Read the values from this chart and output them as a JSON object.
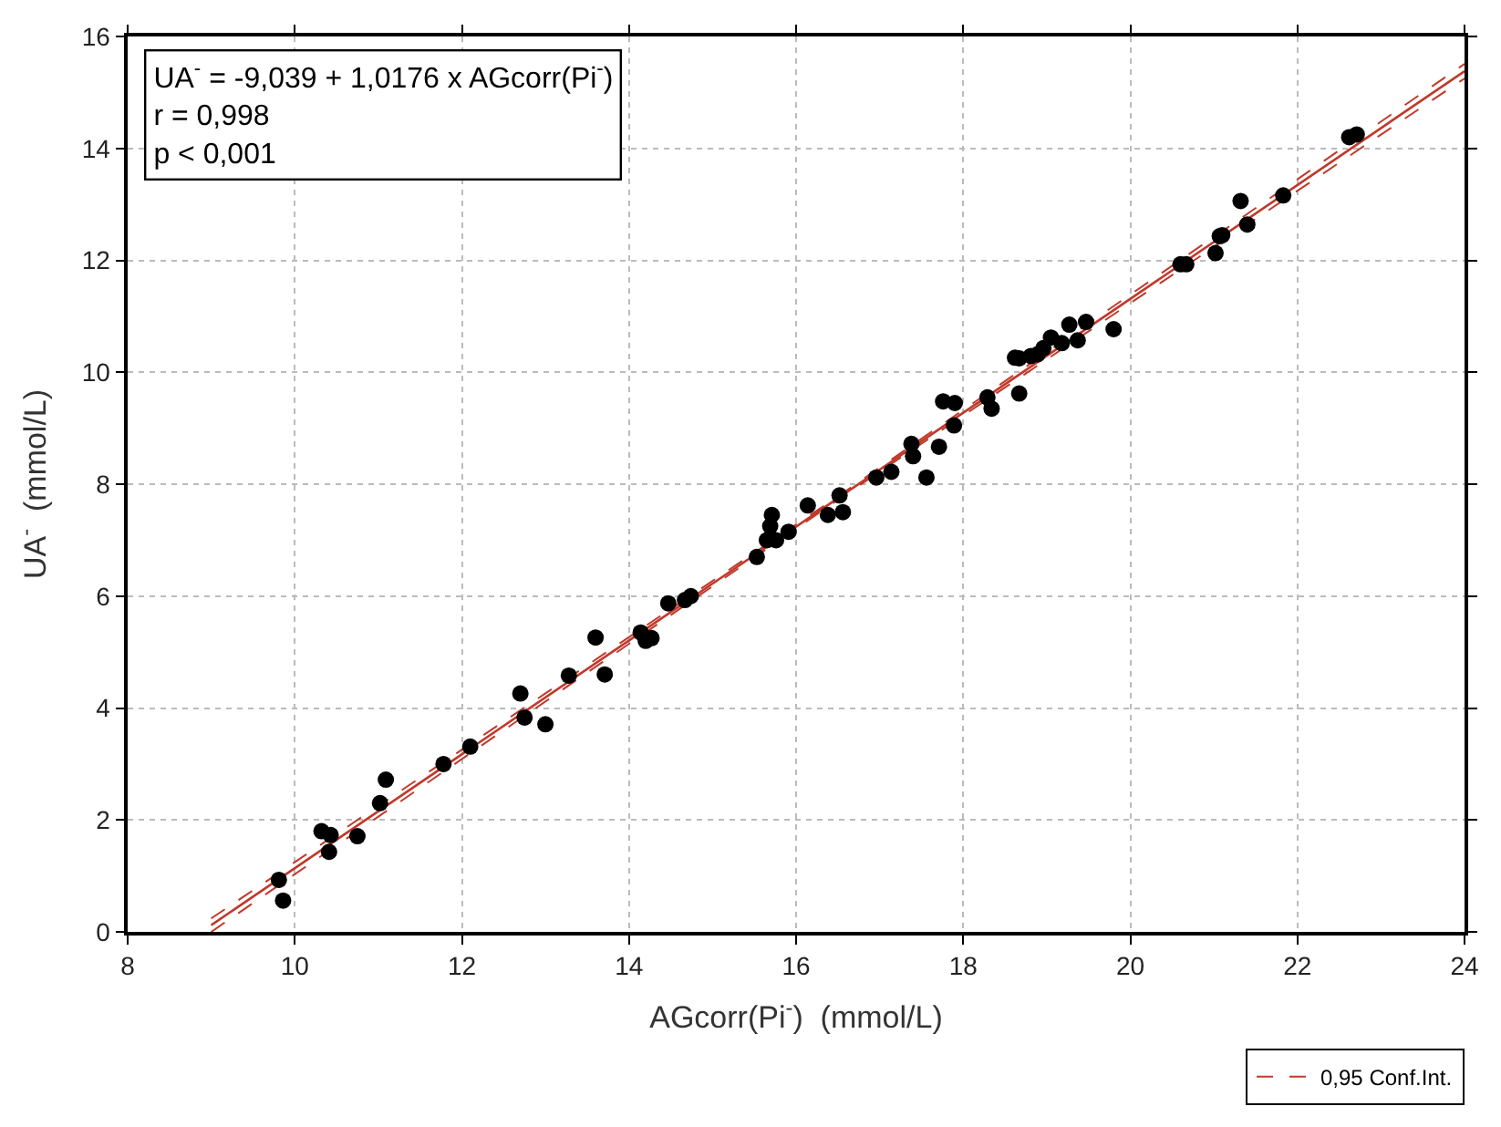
{
  "chart_data": {
    "type": "scatter",
    "xlabel": "AGcorr(Pi$^{-}$)  (mmol/L)",
    "ylabel": "UA$^{-}$  (mmol/L)",
    "annotations": [
      "UA$^{-}$ = -9,039 + 1,0176 x AGcorr(Pi$^{-}$)",
      "r = 0,998",
      "p < 0,001"
    ],
    "xlim": [
      8,
      24
    ],
    "xticks": [
      8,
      10,
      12,
      14,
      16,
      18,
      20,
      22,
      24
    ],
    "ylim": [
      0,
      16
    ],
    "yticks": [
      0,
      2,
      4,
      6,
      8,
      10,
      12,
      14,
      16
    ],
    "grid": true,
    "legend": "bottom right",
    "series": [
      {
        "color": "#000000",
        "marker": "circle",
        "x": [
          9.81,
          9.86,
          10.32,
          10.43,
          10.41,
          10.75,
          11.02,
          11.09,
          11.78,
          12.1,
          12.7,
          12.75,
          13.0,
          13.28,
          13.6,
          13.71,
          14.14,
          14.2,
          14.27,
          14.47,
          14.67,
          14.74,
          15.53,
          15.65,
          15.69,
          15.71,
          15.76,
          15.91,
          16.14,
          16.38,
          16.52,
          16.56,
          16.96,
          17.14,
          17.38,
          17.4,
          17.56,
          17.71,
          17.76,
          17.9,
          17.89,
          18.29,
          18.34,
          18.67,
          18.67,
          18.89,
          18.62,
          18.81,
          18.96,
          19.05,
          19.18,
          19.27,
          19.37,
          19.47,
          19.8,
          20.6,
          20.67,
          21.02,
          21.07,
          21.1,
          21.4,
          21.32,
          21.83,
          22.62,
          22.71
        ],
        "values": [
          0.93,
          0.56,
          1.8,
          1.73,
          1.43,
          1.71,
          2.3,
          2.72,
          3.0,
          3.31,
          4.26,
          3.83,
          3.71,
          4.58,
          5.26,
          4.6,
          5.35,
          5.2,
          5.25,
          5.87,
          5.93,
          6.0,
          6.7,
          7.0,
          7.25,
          7.45,
          7.0,
          7.15,
          7.62,
          7.45,
          7.8,
          7.5,
          8.12,
          8.22,
          8.72,
          8.5,
          8.12,
          8.67,
          9.48,
          9.45,
          9.05,
          9.55,
          9.35,
          9.62,
          10.25,
          10.32,
          10.26,
          10.29,
          10.43,
          10.62,
          10.52,
          10.85,
          10.57,
          10.9,
          10.77,
          11.93,
          11.93,
          12.13,
          12.43,
          12.45,
          12.64,
          13.06,
          13.16,
          14.2,
          14.25
        ]
      },
      {
        "type": "line",
        "color": "#c0392b",
        "line_style": "solid",
        "x": [
          9.0,
          16.5,
          24.0
        ],
        "values": [
          0.12,
          7.75,
          15.38
        ]
      },
      {
        "type": "line",
        "name": "0,95 Conf.Int.",
        "color": "#c0392b",
        "line_style": "dashed",
        "x": [
          9.0,
          16.5,
          24.0
        ],
        "values": [
          0.0,
          7.72,
          15.25
        ]
      },
      {
        "type": "line",
        "color": "#c0392b",
        "line_style": "dashed",
        "x": [
          9.0,
          16.5,
          24.0
        ],
        "values": [
          0.24,
          7.78,
          15.51
        ]
      }
    ]
  }
}
